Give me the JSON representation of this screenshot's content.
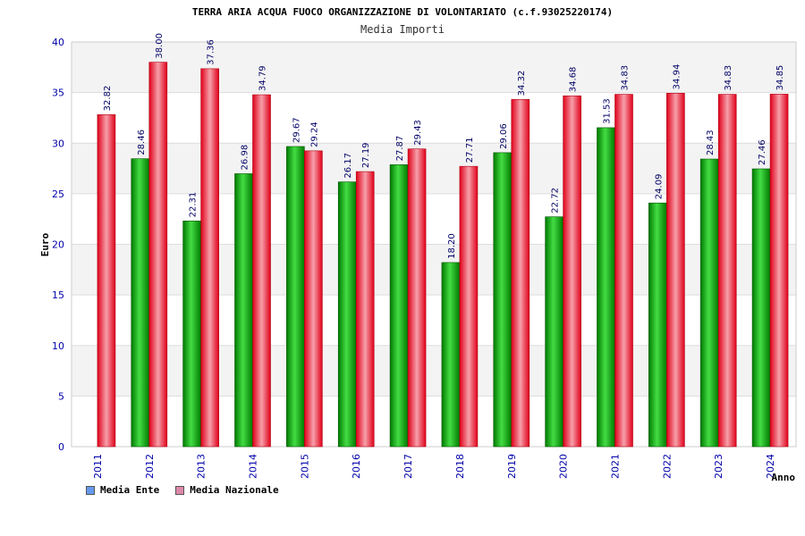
{
  "chart_data": {
    "type": "bar",
    "title": "TERRA ARIA ACQUA FUOCO ORGANIZZAZIONE DI VOLONTARIATO (c.f.93025220174)",
    "subtitle": "Media Importi",
    "xlabel": "Anno",
    "ylabel": "Euro",
    "ylim": [
      0,
      40
    ],
    "yticks": [
      0,
      5,
      10,
      15,
      20,
      25,
      30,
      35,
      40
    ],
    "grid": true,
    "legend_position": "bottom-left",
    "categories": [
      "2011",
      "2012",
      "2013",
      "2014",
      "2015",
      "2016",
      "2017",
      "2018",
      "2019",
      "2020",
      "2021",
      "2022",
      "2023",
      "2024"
    ],
    "series": [
      {
        "name": "Media Ente",
        "color": "#00aa00",
        "legend_color": "#6699ee",
        "values": [
          null,
          28.46,
          22.31,
          26.98,
          29.67,
          26.17,
          27.87,
          18.2,
          29.06,
          22.72,
          31.53,
          24.09,
          28.43,
          27.46
        ],
        "labels": [
          "",
          "28.46",
          "22.31",
          "26.98",
          "29.67",
          "26.17",
          "27.87",
          "18.20",
          "29.06",
          "22.72",
          "31.53",
          "24.09",
          "28.43",
          "27.46"
        ]
      },
      {
        "name": "Media Nazionale",
        "color": "#ee1122",
        "legend_color": "#dd88aa",
        "values": [
          32.82,
          38.0,
          37.36,
          34.79,
          29.24,
          27.19,
          29.43,
          27.71,
          34.32,
          34.68,
          34.83,
          34.94,
          34.83,
          34.85
        ],
        "labels": [
          "32.82",
          "38.00",
          "37.36",
          "34.79",
          "29.24",
          "27.19",
          "29.43",
          "27.71",
          "34.32",
          "34.68",
          "34.83",
          "34.94",
          "34.83",
          "34.85"
        ]
      }
    ]
  }
}
